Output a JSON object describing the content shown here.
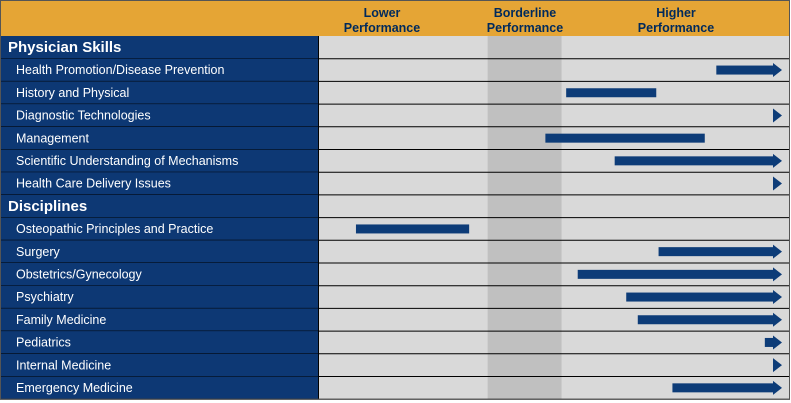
{
  "chart_data": {
    "type": "bar",
    "header_columns": [
      {
        "line1": "Lower",
        "line2": "Performance"
      },
      {
        "line1": "Borderline",
        "line2": "Performance"
      },
      {
        "line1": "Higher",
        "line2": "Performance"
      }
    ],
    "scale": {
      "min": 0,
      "max": 100,
      "borderline_band": [
        36.5,
        52.5
      ]
    },
    "sections": [
      {
        "title": "Physician Skills",
        "rows": [
          {
            "label": "Health Promotion/Disease Prevention",
            "start": 86,
            "end": 100,
            "arrow": true
          },
          {
            "label": "History and Physical",
            "start": 53.5,
            "end": 73,
            "arrow": false
          },
          {
            "label": "Diagnostic Technologies",
            "start": 100,
            "end": 100,
            "arrow": true
          },
          {
            "label": "Management",
            "start": 49,
            "end": 83.5,
            "arrow": false
          },
          {
            "label": "Scientific Understanding of Mechanisms",
            "start": 64,
            "end": 100,
            "arrow": true
          },
          {
            "label": "Health Care Delivery Issues",
            "start": 100,
            "end": 100,
            "arrow": true
          }
        ]
      },
      {
        "title": "Disciplines",
        "rows": [
          {
            "label": "Osteopathic Principles and Practice",
            "start": 8,
            "end": 32.5,
            "arrow": false
          },
          {
            "label": "Surgery",
            "start": 73.5,
            "end": 100,
            "arrow": true
          },
          {
            "label": "Obstetrics/Gynecology",
            "start": 56,
            "end": 100,
            "arrow": true
          },
          {
            "label": "Psychiatry",
            "start": 66.5,
            "end": 100,
            "arrow": true
          },
          {
            "label": "Family Medicine",
            "start": 69,
            "end": 100,
            "arrow": true
          },
          {
            "label": "Pediatrics",
            "start": 96.5,
            "end": 100,
            "arrow": true
          },
          {
            "label": "Internal Medicine",
            "start": 100,
            "end": 100,
            "arrow": true
          },
          {
            "label": "Emergency Medicine",
            "start": 76.5,
            "end": 100,
            "arrow": true
          }
        ]
      }
    ],
    "colors": {
      "header_bg": "#e5a535",
      "header_text": "#002a5c",
      "label_bg": "#0d3874",
      "plot_bg": "#d9d9d9",
      "borderline_band": "#c0c0c0",
      "bar": "#0d3c78",
      "separator": "#000000"
    }
  }
}
